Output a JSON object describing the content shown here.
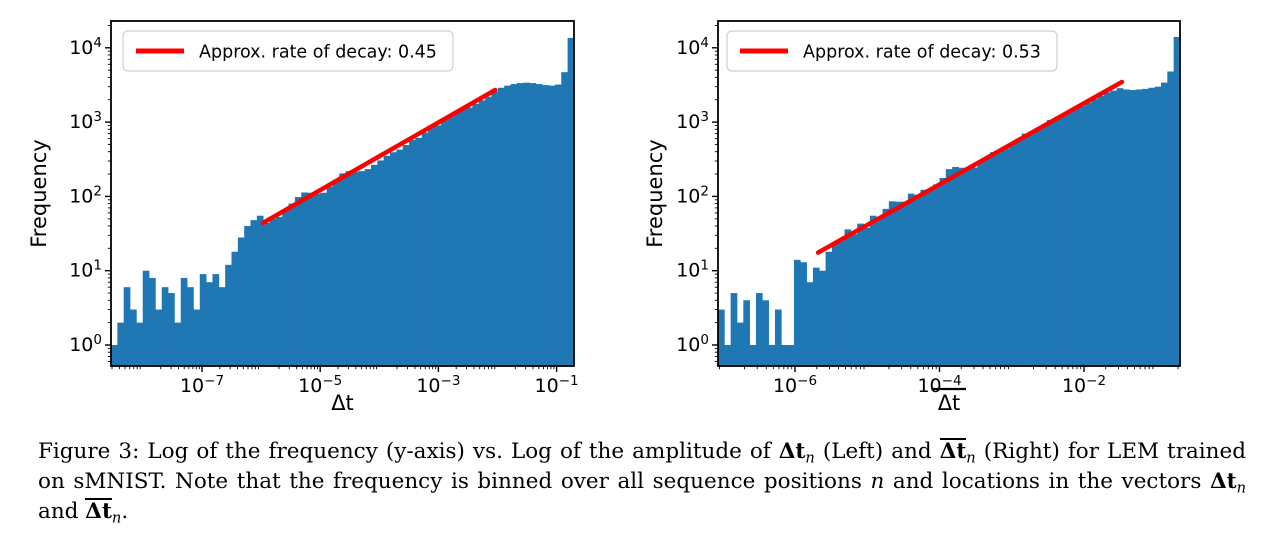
{
  "figure": {
    "caption_segments": [
      {
        "text": "Figure 3: Log of the frequency (y-axis) vs. Log of the amplitude of ",
        "style": "plain"
      },
      {
        "text": "Δt",
        "style": "bold"
      },
      {
        "text": "n",
        "style": "sub"
      },
      {
        "text": " (Left) and ",
        "style": "plain"
      },
      {
        "text": "Δt",
        "style": "boldover"
      },
      {
        "text": "n",
        "style": "sub"
      },
      {
        "text": " (Right) for LEM trained on sMNIST. Note that the frequency is binned over all sequence positions ",
        "style": "plain"
      },
      {
        "text": "n",
        "style": "italic"
      },
      {
        "text": " and locations in the vectors ",
        "style": "plain"
      },
      {
        "text": "Δt",
        "style": "bold"
      },
      {
        "text": "n",
        "style": "sub"
      },
      {
        "text": " and ",
        "style": "plain"
      },
      {
        "text": "Δt",
        "style": "boldover"
      },
      {
        "text": "n",
        "style": "sub"
      },
      {
        "text": ".",
        "style": "plain"
      }
    ]
  },
  "chart_data": [
    {
      "type": "histogram",
      "title": "",
      "xlabel": "Δt",
      "xlabel_overline": false,
      "ylabel": "Frequency",
      "legend": {
        "label": "Approx. rate of decay: 0.45",
        "position": "upper left"
      },
      "decay_rate": 0.45,
      "bar_color": "#1f77b4",
      "fit_line_color": "#ff0000",
      "x_scale": "log",
      "y_scale": "log",
      "x_log_range": [
        -8.54,
        -0.706
      ],
      "y_log_range": [
        -0.2827,
        4.361
      ],
      "x_tick_exponents": [
        -7,
        -5,
        -3,
        -1
      ],
      "y_tick_exponents": [
        0,
        1,
        2,
        3,
        4
      ],
      "bins_log10_left_edge": -8.54,
      "bins_log10_width": 0.1073,
      "bar_heights": [
        1,
        2,
        6,
        3,
        2,
        10,
        8,
        3,
        6,
        5,
        2,
        8,
        6,
        3,
        9,
        7,
        9,
        6,
        12,
        18,
        28,
        40,
        48,
        55,
        44,
        50,
        53,
        66,
        80,
        98,
        113,
        112,
        109,
        112,
        136,
        167,
        204,
        219,
        213,
        219,
        233,
        266,
        305,
        352,
        393,
        426,
        492,
        578,
        614,
        723,
        847,
        902,
        1110,
        1183,
        1385,
        1477,
        1573,
        1758,
        1963,
        2193,
        2578,
        2900,
        3100,
        3250,
        3350,
        3400,
        3350,
        3250,
        3150,
        3100,
        3200,
        4700,
        13600
      ],
      "fit_line": {
        "x1_log": -5.97,
        "y1_log": 1.643,
        "x2_log": -2.04,
        "y2_log": 3.432
      }
    },
    {
      "type": "histogram",
      "title": "",
      "xlabel": "Δt",
      "xlabel_overline": true,
      "ylabel": "Frequency",
      "legend": {
        "label": "Approx. rate of decay: 0.53",
        "position": "upper left"
      },
      "decay_rate": 0.53,
      "bar_color": "#1f77b4",
      "fit_line_color": "#ff0000",
      "x_scale": "log",
      "y_scale": "log",
      "x_log_range": [
        -7.066,
        -0.671
      ],
      "y_log_range": [
        -0.2827,
        4.361
      ],
      "x_tick_exponents": [
        -6,
        -4,
        -2
      ],
      "y_tick_exponents": [
        0,
        1,
        2,
        3,
        4
      ],
      "bins_log10_left_edge": -7.066,
      "bins_log10_width": 0.0876,
      "bar_heights": [
        3,
        1,
        5,
        2,
        4,
        1,
        5,
        4,
        1,
        3,
        1,
        1,
        14,
        13,
        7,
        11,
        10,
        18,
        24,
        26,
        36,
        31,
        43,
        38,
        55,
        50,
        68,
        86,
        85,
        85,
        109,
        105,
        123,
        124,
        145,
        177,
        233,
        249,
        243,
        233,
        245,
        288,
        337,
        394,
        417,
        440,
        514,
        600,
        700,
        741,
        785,
        917,
        1068,
        1133,
        1199,
        1334,
        1557,
        1648,
        1832,
        2037,
        2264,
        2517,
        2658,
        2862,
        2750,
        2700,
        2750,
        2800,
        2900,
        3000,
        3400,
        4800,
        14000
      ],
      "fit_line": {
        "x1_log": -5.68,
        "y1_log": 1.243,
        "x2_log": -1.475,
        "y2_log": 3.54
      }
    }
  ]
}
